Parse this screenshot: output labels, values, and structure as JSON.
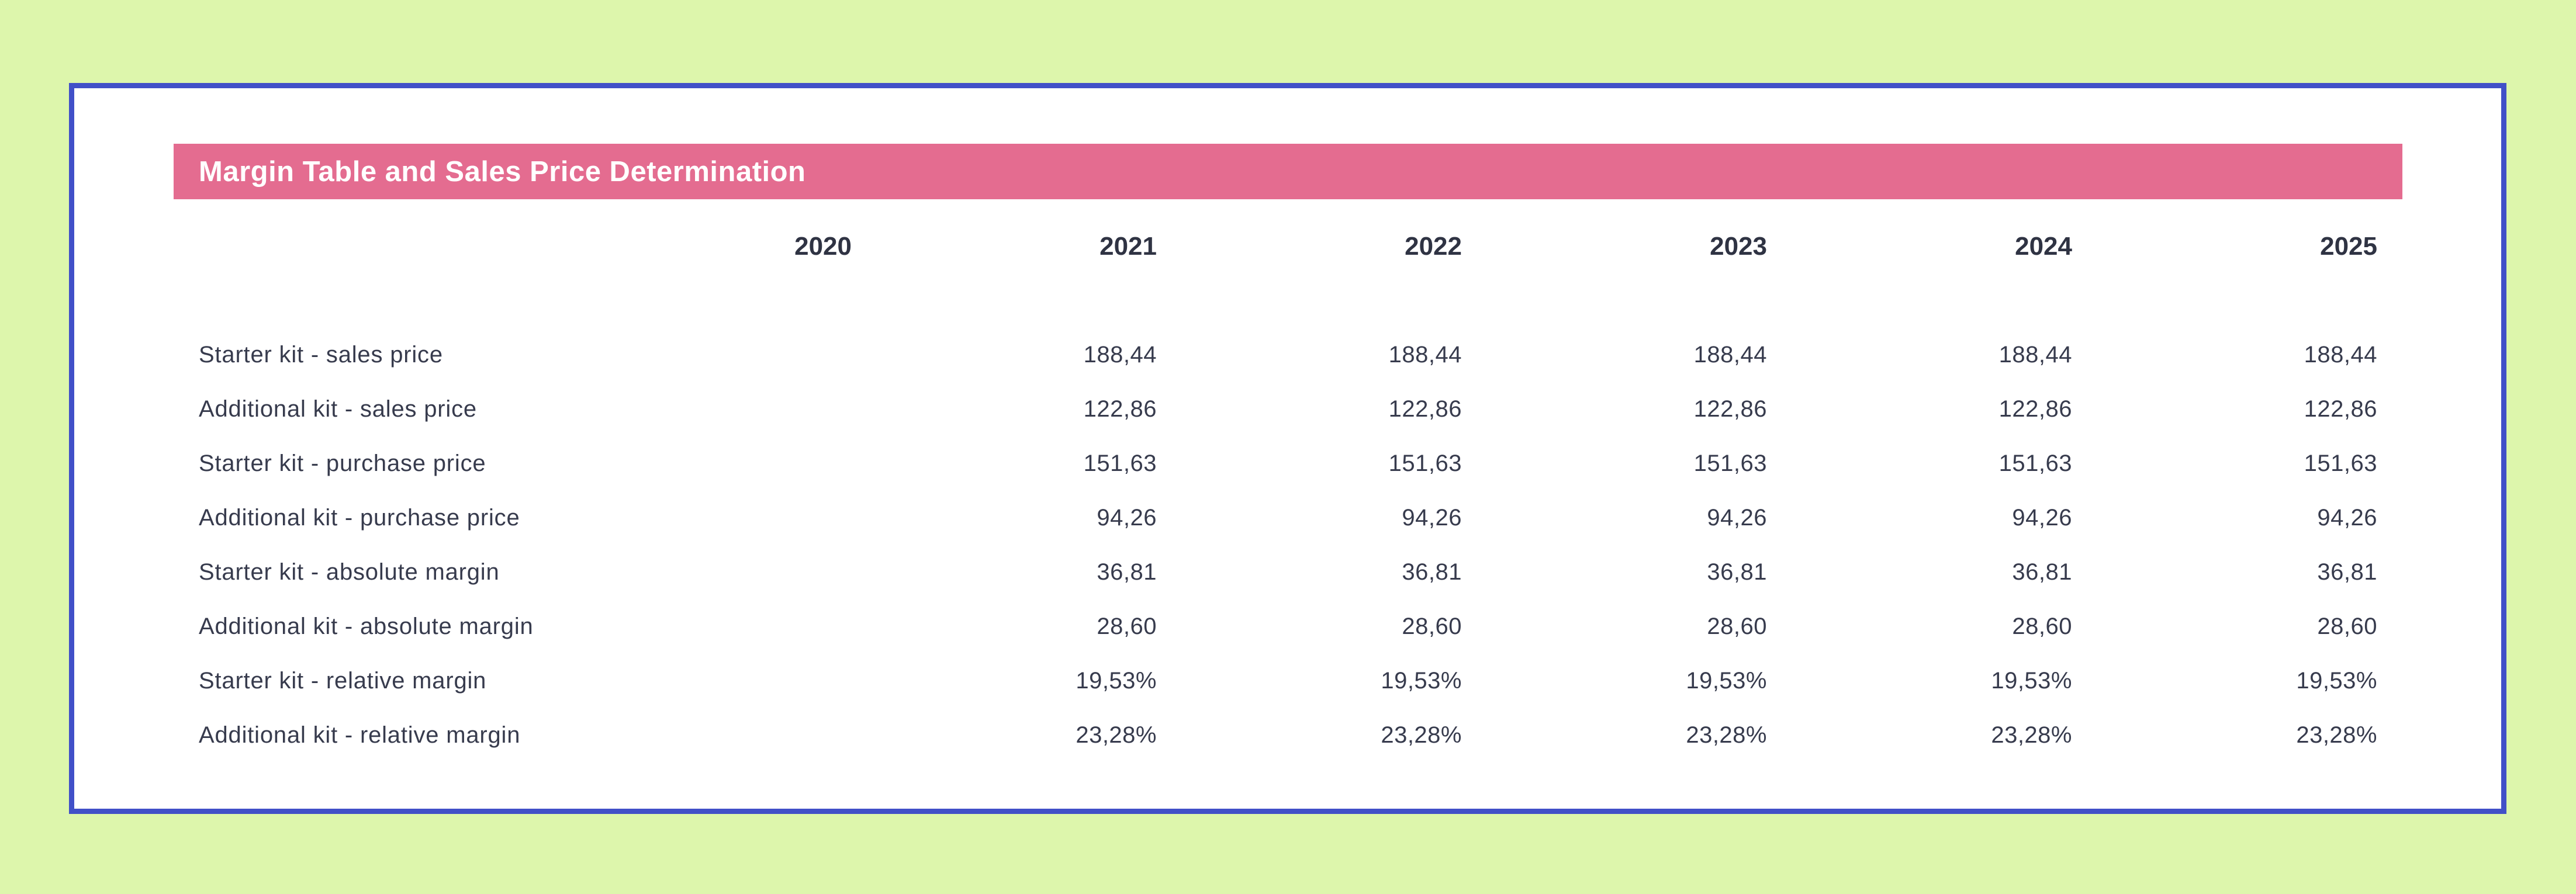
{
  "page": {
    "background_color": "#ddf6ac",
    "card_border_color": "#4150c8",
    "card_background_color": "#ffffff"
  },
  "header": {
    "title": "Margin Table and Sales Price Determination",
    "bar_color": "#e46c90",
    "text_color": "#ffffff"
  },
  "table": {
    "columns": [
      "2020",
      "2021",
      "2022",
      "2023",
      "2024",
      "2025"
    ],
    "text_color": "#373b4d",
    "rows": [
      {
        "label": "Starter kit - sales price",
        "values": [
          "",
          "188,44",
          "188,44",
          "188,44",
          "188,44",
          "188,44"
        ]
      },
      {
        "label": "Additional kit - sales price",
        "values": [
          "",
          "122,86",
          "122,86",
          "122,86",
          "122,86",
          "122,86"
        ]
      },
      {
        "label": "Starter kit - purchase price",
        "values": [
          "",
          "151,63",
          "151,63",
          "151,63",
          "151,63",
          "151,63"
        ]
      },
      {
        "label": "Additional kit - purchase price",
        "values": [
          "",
          "94,26",
          "94,26",
          "94,26",
          "94,26",
          "94,26"
        ]
      },
      {
        "label": "Starter kit - absolute margin",
        "values": [
          "",
          "36,81",
          "36,81",
          "36,81",
          "36,81",
          "36,81"
        ]
      },
      {
        "label": "Additional kit - absolute margin",
        "values": [
          "",
          "28,60",
          "28,60",
          "28,60",
          "28,60",
          "28,60"
        ]
      },
      {
        "label": "Starter kit - relative margin",
        "values": [
          "",
          "19,53%",
          "19,53%",
          "19,53%",
          "19,53%",
          "19,53%"
        ]
      },
      {
        "label": "Additional kit - relative margin",
        "values": [
          "",
          "23,28%",
          "23,28%",
          "23,28%",
          "23,28%",
          "23,28%"
        ]
      }
    ]
  }
}
